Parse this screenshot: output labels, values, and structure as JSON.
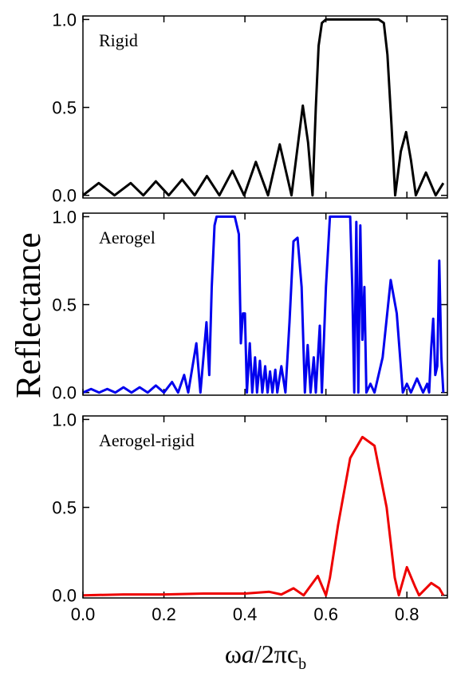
{
  "ylabel": "Reflectance",
  "xlabel": [
    "ω",
    "a",
    "/2πc",
    "b"
  ],
  "chart_data": [
    {
      "type": "line",
      "label": "Rigid",
      "color": "#000000",
      "ylim": [
        -0.015,
        1.02
      ],
      "yticks": [
        {
          "value": 0,
          "label": "0.0"
        },
        0.5,
        {
          "value": 1,
          "label": "1.0"
        }
      ],
      "x": [
        0,
        0.039,
        0.078,
        0.118,
        0.149,
        0.18,
        0.212,
        0.245,
        0.276,
        0.306,
        0.337,
        0.369,
        0.398,
        0.427,
        0.457,
        0.486,
        0.515,
        0.543,
        0.556,
        0.567,
        0.575,
        0.582,
        0.59,
        0.6,
        0.73,
        0.743,
        0.752,
        0.762,
        0.771,
        0.785,
        0.798,
        0.81,
        0.822,
        0.847,
        0.871,
        0.89
      ],
      "values": [
        0,
        0.07,
        0,
        0.07,
        0,
        0.08,
        0,
        0.09,
        0,
        0.11,
        0,
        0.14,
        0,
        0.19,
        0,
        0.29,
        0,
        0.51,
        0.3,
        0,
        0.5,
        0.85,
        0.98,
        1.0,
        1.0,
        0.98,
        0.8,
        0.4,
        0,
        0.25,
        0.36,
        0.2,
        0,
        0.13,
        0,
        0.07
      ]
    },
    {
      "type": "line",
      "label": "Aerogel",
      "color": "#0000ee",
      "ylim": [
        -0.015,
        1.02
      ],
      "yticks": [
        {
          "value": 0,
          "label": "0.0"
        },
        0.5,
        {
          "value": 1,
          "label": "1.0"
        }
      ],
      "x": [
        0,
        0.02,
        0.04,
        0.06,
        0.08,
        0.1,
        0.12,
        0.14,
        0.16,
        0.18,
        0.2,
        0.22,
        0.235,
        0.25,
        0.26,
        0.28,
        0.29,
        0.305,
        0.312,
        0.318,
        0.325,
        0.33,
        0.375,
        0.385,
        0.39,
        0.395,
        0.4,
        0.405,
        0.412,
        0.418,
        0.425,
        0.43,
        0.437,
        0.443,
        0.45,
        0.456,
        0.462,
        0.468,
        0.475,
        0.48,
        0.49,
        0.5,
        0.51,
        0.52,
        0.53,
        0.54,
        0.548,
        0.555,
        0.562,
        0.57,
        0.575,
        0.585,
        0.59,
        0.6,
        0.61,
        0.66,
        0.665,
        0.67,
        0.675,
        0.68,
        0.685,
        0.69,
        0.695,
        0.7,
        0.71,
        0.72,
        0.74,
        0.76,
        0.775,
        0.79,
        0.8,
        0.81,
        0.825,
        0.84,
        0.85,
        0.855,
        0.86,
        0.865,
        0.87,
        0.875,
        0.88,
        0.885,
        0.89
      ],
      "values": [
        0,
        0.02,
        0,
        0.02,
        0,
        0.03,
        0,
        0.03,
        0,
        0.04,
        0,
        0.06,
        0,
        0.1,
        0,
        0.28,
        0,
        0.4,
        0.1,
        0.6,
        0.95,
        1.0,
        1.0,
        0.9,
        0.28,
        0.45,
        0.45,
        0,
        0.28,
        0,
        0.2,
        0,
        0.18,
        0,
        0.15,
        0,
        0.12,
        0,
        0.13,
        0,
        0.15,
        0,
        0.4,
        0.86,
        0.88,
        0.6,
        0,
        0.27,
        0,
        0.2,
        0,
        0.38,
        0,
        0.6,
        1.0,
        1.0,
        0.6,
        0,
        0.97,
        0,
        0.95,
        0.3,
        0.6,
        0,
        0.05,
        0,
        0.2,
        0.64,
        0.45,
        0,
        0.05,
        0,
        0.08,
        0,
        0.05,
        0,
        0.25,
        0.42,
        0.1,
        0.15,
        0.75,
        0.2,
        0
      ]
    },
    {
      "type": "line",
      "label": "Aerogel-rigid",
      "color": "#ee0000",
      "ylim": [
        -0.015,
        1.02
      ],
      "yticks": [
        {
          "value": 0,
          "label": "0.0"
        },
        0.5,
        {
          "value": 1,
          "label": "1.0"
        }
      ],
      "xlim": [
        0,
        0.9
      ],
      "xticks": [
        {
          "value": 0,
          "label": "0.0"
        },
        0.2,
        0.4,
        0.6,
        0.8
      ],
      "x": [
        0,
        0.1,
        0.2,
        0.3,
        0.4,
        0.46,
        0.49,
        0.52,
        0.545,
        0.58,
        0.6,
        0.61,
        0.63,
        0.66,
        0.69,
        0.72,
        0.75,
        0.77,
        0.78,
        0.8,
        0.82,
        0.83,
        0.86,
        0.88,
        0.89
      ],
      "values": [
        0,
        0.005,
        0.005,
        0.01,
        0.01,
        0.02,
        0.005,
        0.04,
        0,
        0.11,
        0,
        0.1,
        0.4,
        0.78,
        0.9,
        0.85,
        0.5,
        0.1,
        0,
        0.16,
        0.05,
        0,
        0.07,
        0.04,
        0
      ]
    }
  ]
}
